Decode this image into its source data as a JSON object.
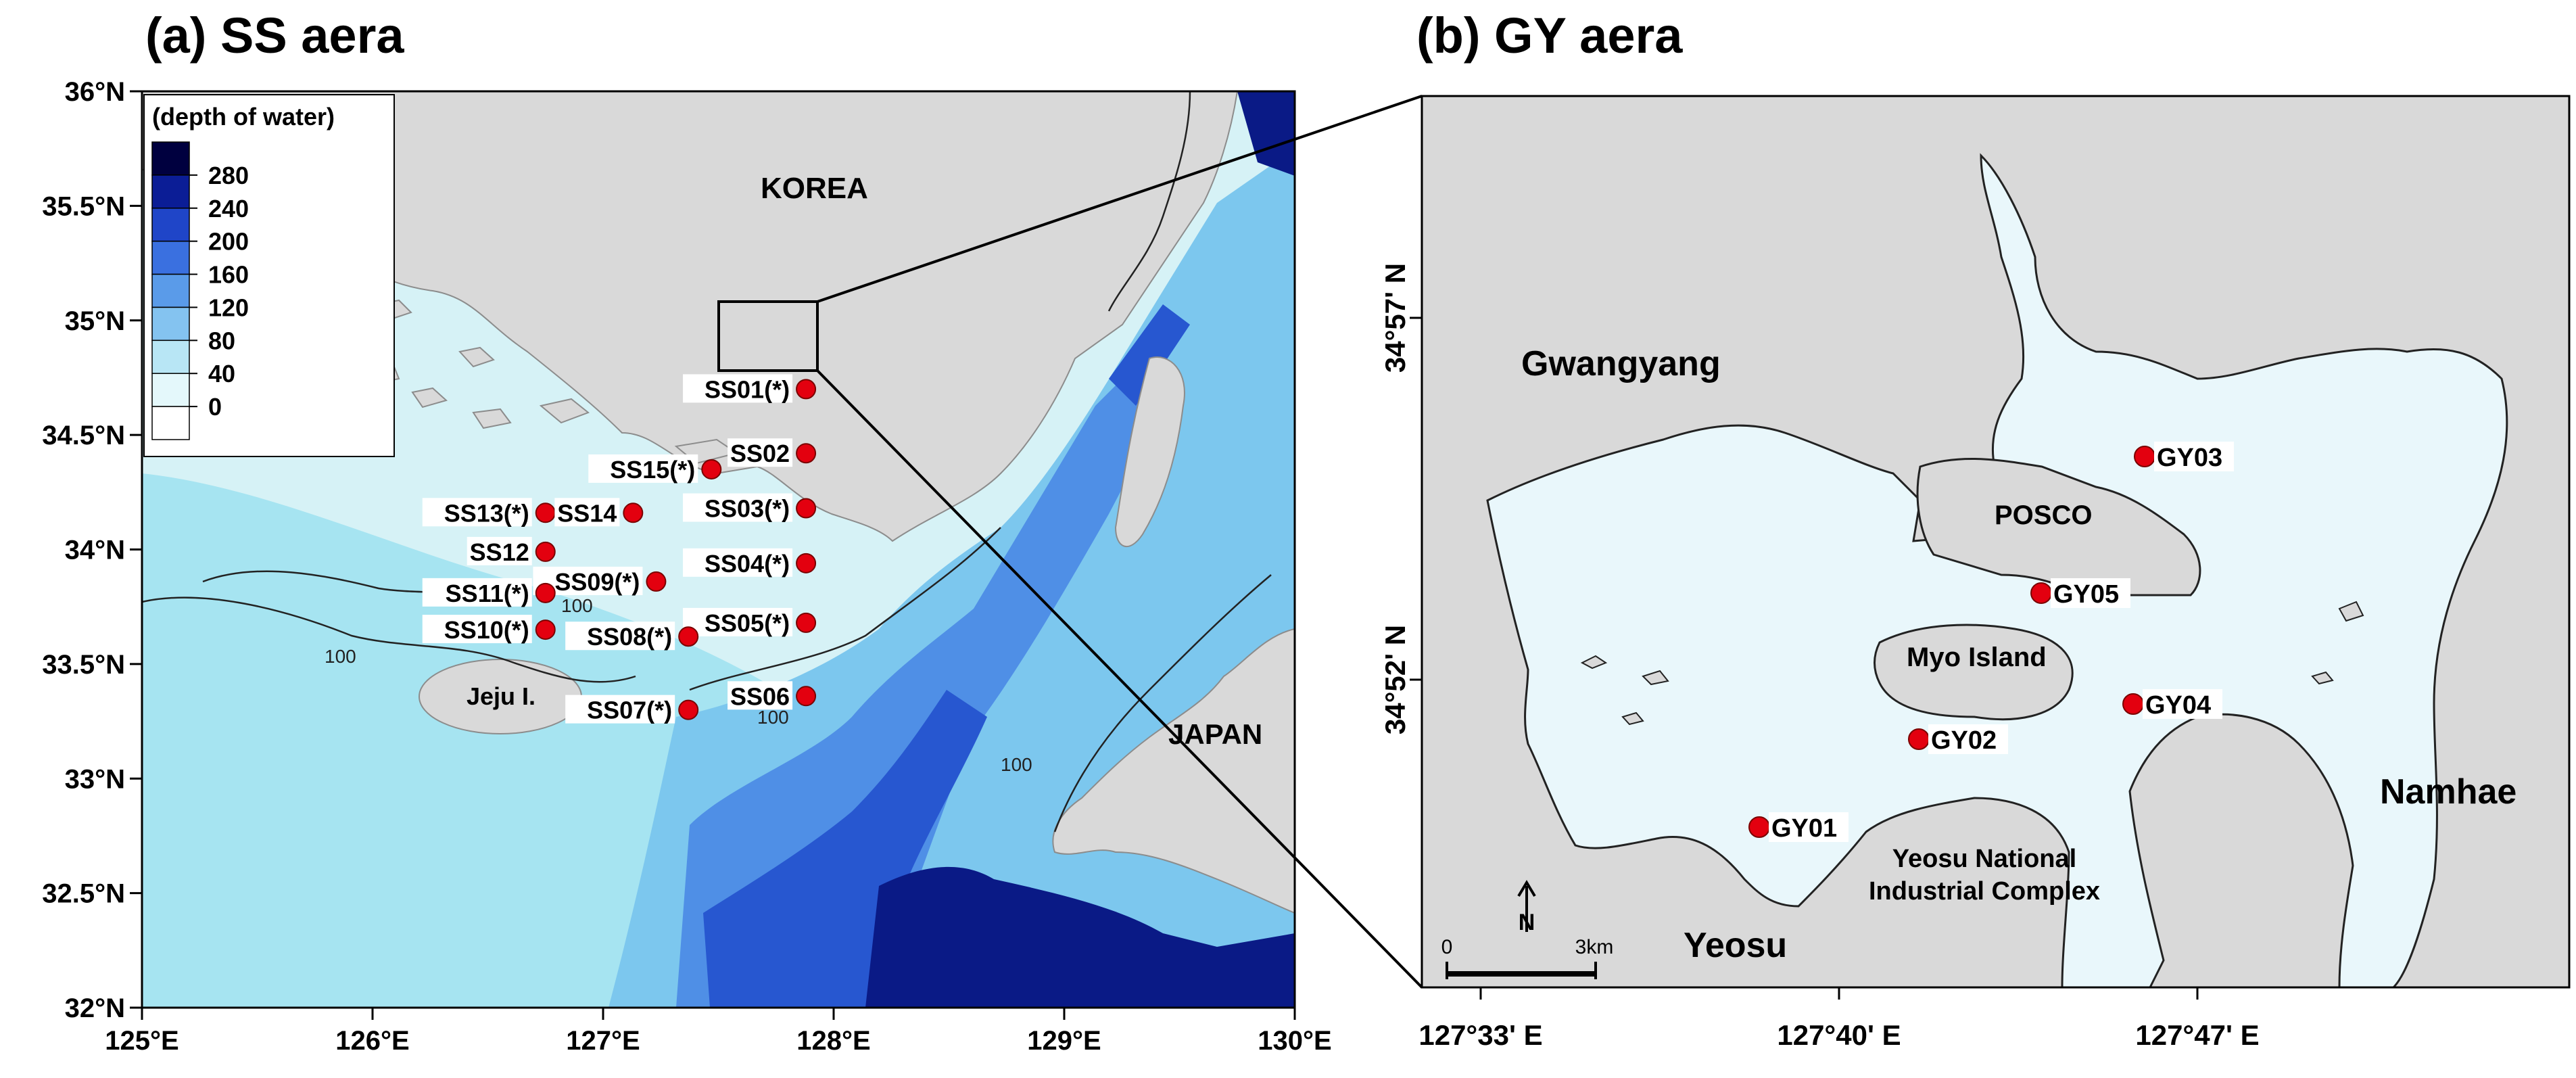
{
  "panel_a": {
    "title": "(a) SS aera",
    "lat_labels": [
      "36°N",
      "35.5°N",
      "35°N",
      "34.5°N",
      "34°N",
      "33.5°N",
      "33°N",
      "32.5°N",
      "32°N"
    ],
    "lon_labels": [
      "125°E",
      "126°E",
      "127°E",
      "128°E",
      "129°E",
      "130°E"
    ],
    "legend": {
      "title": "(depth of water)",
      "levels": [
        "280",
        "240",
        "200",
        "160",
        "120",
        "80",
        "40",
        "0"
      ],
      "colors": [
        "#00003f",
        "#0b1d96",
        "#1f45c8",
        "#3a70e0",
        "#5a9be9",
        "#84c3f0",
        "#b8e6f5",
        "#e4f8fb",
        "#ffffff"
      ]
    },
    "region_labels": {
      "korea": "KOREA",
      "japan": "JAPAN",
      "jeju": "Jeju I."
    },
    "contour_labels": [
      "100",
      "100",
      "100",
      "100"
    ],
    "stations": [
      {
        "id": "SS01(*)",
        "lon": 127.88,
        "lat": 34.7
      },
      {
        "id": "SS02",
        "lon": 127.88,
        "lat": 34.42
      },
      {
        "id": "SS03(*)",
        "lon": 127.88,
        "lat": 34.18
      },
      {
        "id": "SS04(*)",
        "lon": 127.88,
        "lat": 33.94
      },
      {
        "id": "SS05(*)",
        "lon": 127.88,
        "lat": 33.68
      },
      {
        "id": "SS06",
        "lon": 127.88,
        "lat": 33.36
      },
      {
        "id": "SS07(*)",
        "lon": 127.37,
        "lat": 33.3
      },
      {
        "id": "SS08(*)",
        "lon": 127.37,
        "lat": 33.62
      },
      {
        "id": "SS09(*)",
        "lon": 127.23,
        "lat": 33.86
      },
      {
        "id": "SS10(*)",
        "lon": 126.75,
        "lat": 33.65
      },
      {
        "id": "SS11(*)",
        "lon": 126.75,
        "lat": 33.81
      },
      {
        "id": "SS12",
        "lon": 126.75,
        "lat": 33.99
      },
      {
        "id": "SS13(*)",
        "lon": 126.75,
        "lat": 34.16
      },
      {
        "id": "SS14",
        "lon": 127.13,
        "lat": 34.16
      },
      {
        "id": "SS15(*)",
        "lon": 127.47,
        "lat": 34.35
      }
    ]
  },
  "panel_b": {
    "title": "(b) GY aera",
    "lat_labels": [
      "34°57' N",
      "34°52' N"
    ],
    "lon_labels": [
      "127°33' E",
      "127°40' E",
      "127°47' E"
    ],
    "place_labels": {
      "gwangyang": "Gwangyang",
      "posco": "POSCO",
      "myo": "Myo Island",
      "namhae": "Namhae",
      "yeosu_complex_1": "Yeosu National",
      "yeosu_complex_2": "Industrial Complex",
      "yeosu": "Yeosu"
    },
    "scale_bar": {
      "start": "0",
      "end": "3km"
    },
    "north_arrow": "N",
    "stations": [
      {
        "id": "GY01"
      },
      {
        "id": "GY02"
      },
      {
        "id": "GY03"
      },
      {
        "id": "GY04"
      },
      {
        "id": "GY05"
      }
    ]
  },
  "colors": {
    "land": "#d9d9d9",
    "station": "#e3000f",
    "water_b": "#e9f7fb"
  }
}
